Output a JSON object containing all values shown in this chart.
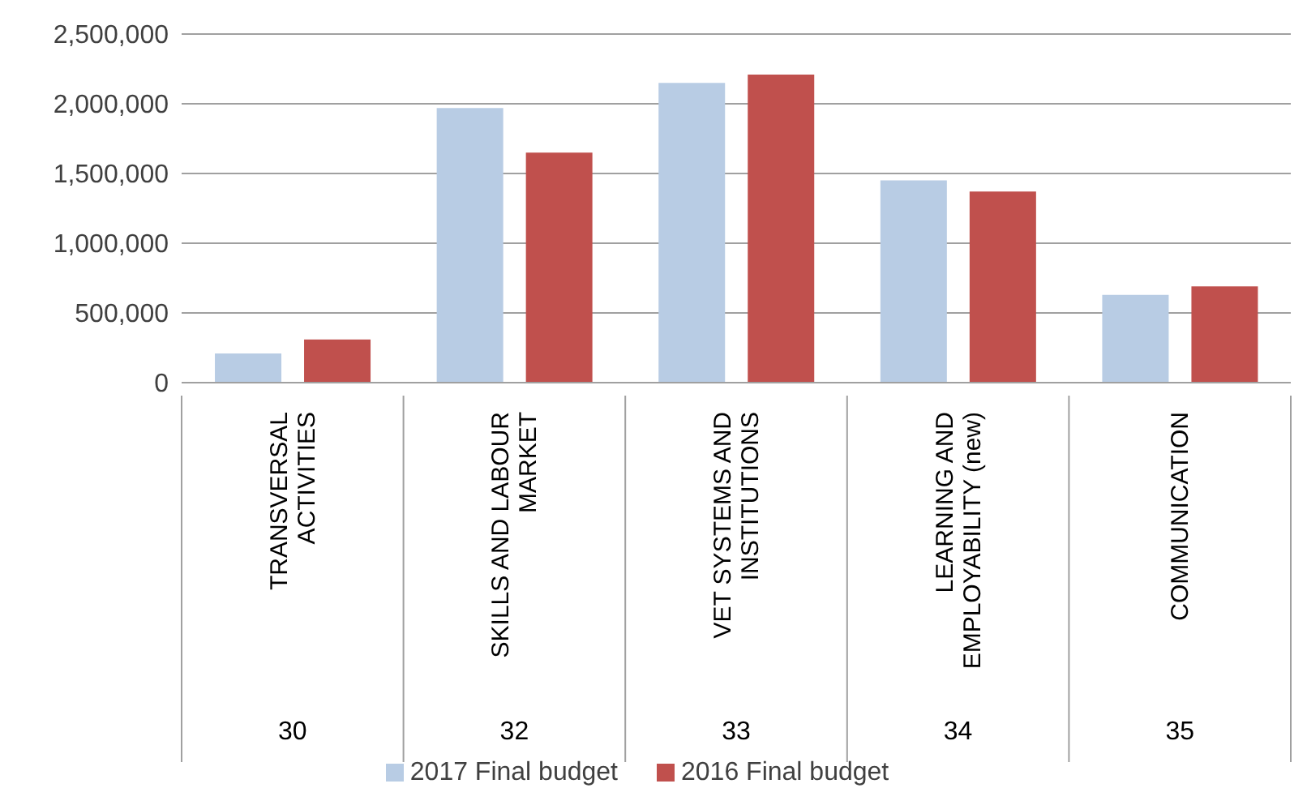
{
  "chart_data": {
    "type": "bar",
    "categories": [
      "TRANSVERSAL ACTIVITIES",
      "SKILLS AND LABOUR MARKET",
      "VET SYSTEMS AND INSTITUTIONS",
      "LEARNING AND EMPLOYABILITY (new)",
      "COMMUNICATION"
    ],
    "series": [
      {
        "name": "2017 Final budget",
        "color": "#b8cce4",
        "values": [
          210000,
          1970000,
          2150000,
          1450000,
          630000
        ]
      },
      {
        "name": "2016 Final budget",
        "color": "#c0504d",
        "values": [
          310000,
          1650000,
          2210000,
          1370000,
          690000
        ]
      }
    ],
    "annotations": [
      "30",
      "32",
      "33",
      "34",
      "35"
    ],
    "ylim": [
      0,
      2500000
    ],
    "yticks": [
      0,
      {
        "value": 500000,
        "label": "500,000"
      },
      {
        "value": 1000000,
        "label": "1,000,000"
      },
      {
        "value": 1500000,
        "label": "1,500,000"
      },
      {
        "value": 2000000,
        "label": "2,000,000"
      },
      {
        "value": 2500000,
        "label": "2,500,000"
      }
    ],
    "grid": "y",
    "legend": "bottom"
  }
}
